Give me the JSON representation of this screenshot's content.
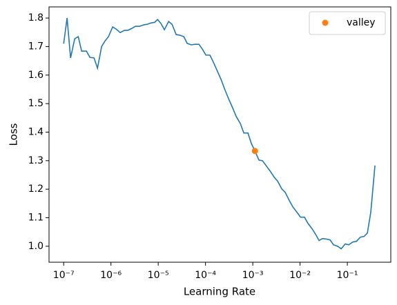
{
  "chart_data": {
    "type": "line",
    "xlabel": "Learning Rate",
    "ylabel": "Loss",
    "xscale": "log",
    "legend": "upper right",
    "xlim": [
      4.9e-08,
      0.83
    ],
    "ylim": [
      0.944,
      1.839
    ],
    "xticks": [
      {
        "value": 1e-07,
        "label": "10⁻⁷"
      },
      {
        "value": 1e-06,
        "label": "10⁻⁶"
      },
      {
        "value": 1e-05,
        "label": "10⁻⁵"
      },
      {
        "value": 0.0001,
        "label": "10⁻⁴"
      },
      {
        "value": 0.001,
        "label": "10⁻³"
      },
      {
        "value": 0.01,
        "label": "10⁻²"
      },
      {
        "value": 0.1,
        "label": "10⁻¹"
      }
    ],
    "yticks": [
      {
        "value": 1,
        "label": "1.0"
      },
      1.1,
      1.2,
      1.3,
      1.4,
      1.5,
      1.6,
      1.7,
      1.8
    ],
    "series": [
      {
        "color": "#1f77b4",
        "x": [
          1e-07,
          1.18e-07,
          1.4e-07,
          1.71e-07,
          2.03e-07,
          2.4e-07,
          3.03e-07,
          3.59e-07,
          4.39e-07,
          5.19e-07,
          6.35e-07,
          7.52e-07,
          8.89e-07,
          1.09e-06,
          1.29e-06,
          1.57e-06,
          1.93e-06,
          2.28e-06,
          2.79e-06,
          3.3e-06,
          4.04e-06,
          4.93e-06,
          5.83e-06,
          7.14e-06,
          8.45e-06,
          9.66e-06,
          1.14e-05,
          1.35e-05,
          1.66e-05,
          1.96e-05,
          2.4e-05,
          2.84e-05,
          3.47e-05,
          4.1e-05,
          5.02e-05,
          5.94e-05,
          7.26e-05,
          8.59e-05,
          0.000102,
          0.000124,
          0.000147,
          0.00018,
          0.000213,
          0.000261,
          0.000308,
          0.000377,
          0.000446,
          0.000546,
          0.000646,
          0.00079,
          0.000934,
          0.00111,
          0.00135,
          0.0016,
          0.00196,
          0.00232,
          0.00284,
          0.00336,
          0.0041,
          0.00485,
          0.00594,
          0.00703,
          0.0086,
          0.0102,
          0.0124,
          0.0147,
          0.018,
          0.0213,
          0.0252,
          0.0298,
          0.0365,
          0.0432,
          0.0511,
          0.0625,
          0.074,
          0.0904,
          0.107,
          0.131,
          0.155,
          0.189,
          0.224,
          0.265,
          0.313,
          0.384
        ],
        "values": [
          1.71,
          1.8,
          1.66,
          1.727,
          1.735,
          1.684,
          1.684,
          1.662,
          1.66,
          1.624,
          1.7,
          1.72,
          1.735,
          1.769,
          1.761,
          1.749,
          1.757,
          1.757,
          1.764,
          1.771,
          1.771,
          1.776,
          1.778,
          1.783,
          1.785,
          1.795,
          1.781,
          1.759,
          1.788,
          1.778,
          1.742,
          1.74,
          1.735,
          1.711,
          1.706,
          1.708,
          1.708,
          1.691,
          1.67,
          1.67,
          1.645,
          1.612,
          1.585,
          1.546,
          1.517,
          1.484,
          1.455,
          1.43,
          1.397,
          1.397,
          1.36,
          1.334,
          1.302,
          1.3,
          1.28,
          1.264,
          1.242,
          1.228,
          1.201,
          1.189,
          1.16,
          1.138,
          1.119,
          1.102,
          1.102,
          1.08,
          1.061,
          1.042,
          1.02,
          1.027,
          1.025,
          1.022,
          1.005,
          1.0,
          0.991,
          1.008,
          1.005,
          1.015,
          1.017,
          1.032,
          1.034,
          1.046,
          1.119,
          1.283
        ]
      },
      {
        "name": "valley",
        "type": "scatter",
        "color": "#ff7f0e",
        "x": [
          0.00111
        ],
        "values": [
          1.334
        ]
      }
    ]
  }
}
